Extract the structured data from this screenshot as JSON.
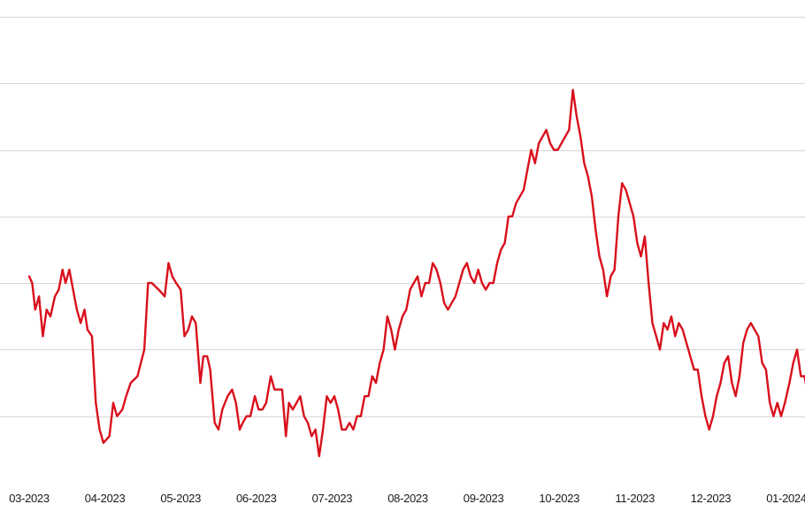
{
  "chart_data": {
    "type": "line",
    "title": "",
    "xlabel": "",
    "ylabel": "",
    "grid": true,
    "legend": "none",
    "line_color": "#d8101c",
    "grid_color": "#d6d6d6",
    "tick_labels": [
      "03-2023",
      "04-2023",
      "05-2023",
      "06-2023",
      "07-2023",
      "08-2023",
      "09-2023",
      "10-2023",
      "11-2023",
      "12-2023",
      "01-2024"
    ],
    "ylim": [
      0,
      7
    ],
    "gridlines": [
      1,
      2,
      3,
      4,
      5,
      6,
      7
    ],
    "series": [
      {
        "values": [
          [
            0.0,
            3.1
          ],
          [
            0.4,
            3.0
          ],
          [
            0.8,
            2.6
          ],
          [
            1.3,
            2.8
          ],
          [
            1.8,
            2.2
          ],
          [
            2.3,
            2.6
          ],
          [
            2.8,
            2.5
          ],
          [
            3.4,
            2.8
          ],
          [
            3.9,
            2.9
          ],
          [
            4.4,
            3.2
          ],
          [
            4.8,
            3.0
          ],
          [
            5.3,
            3.2
          ],
          [
            5.8,
            2.9
          ],
          [
            6.3,
            2.6
          ],
          [
            6.8,
            2.4
          ],
          [
            7.3,
            2.6
          ],
          [
            7.7,
            2.3
          ],
          [
            8.3,
            2.2
          ],
          [
            8.8,
            1.2
          ],
          [
            9.3,
            0.8
          ],
          [
            9.8,
            0.6
          ],
          [
            10.6,
            0.7
          ],
          [
            11.1,
            1.2
          ],
          [
            11.6,
            1.0
          ],
          [
            12.3,
            1.1
          ],
          [
            12.8,
            1.3
          ],
          [
            13.4,
            1.5
          ],
          [
            14.3,
            1.6
          ],
          [
            15.2,
            2.0
          ],
          [
            15.7,
            3.0
          ],
          [
            16.2,
            3.0
          ],
          [
            17.1,
            2.9
          ],
          [
            17.9,
            2.8
          ],
          [
            18.4,
            3.3
          ],
          [
            18.9,
            3.1
          ],
          [
            19.4,
            3.0
          ],
          [
            20.0,
            2.9
          ],
          [
            20.5,
            2.2
          ],
          [
            21.0,
            2.3
          ],
          [
            21.5,
            2.5
          ],
          [
            22.0,
            2.4
          ],
          [
            22.6,
            1.5
          ],
          [
            23.0,
            1.9
          ],
          [
            23.5,
            1.9
          ],
          [
            23.9,
            1.7
          ],
          [
            24.5,
            0.9
          ],
          [
            25.0,
            0.8
          ],
          [
            25.5,
            1.1
          ],
          [
            26.2,
            1.3
          ],
          [
            26.8,
            1.4
          ],
          [
            27.3,
            1.2
          ],
          [
            27.8,
            0.8
          ],
          [
            28.2,
            0.9
          ],
          [
            28.7,
            1.0
          ],
          [
            29.2,
            1.0
          ],
          [
            29.8,
            1.3
          ],
          [
            30.3,
            1.1
          ],
          [
            30.8,
            1.1
          ],
          [
            31.3,
            1.2
          ],
          [
            31.9,
            1.6
          ],
          [
            32.4,
            1.4
          ],
          [
            32.9,
            1.4
          ],
          [
            33.4,
            1.4
          ],
          [
            33.9,
            0.7
          ],
          [
            34.3,
            1.2
          ],
          [
            34.8,
            1.1
          ],
          [
            35.3,
            1.2
          ],
          [
            35.8,
            1.3
          ],
          [
            36.3,
            1.0
          ],
          [
            36.8,
            0.9
          ],
          [
            37.3,
            0.7
          ],
          [
            37.8,
            0.8
          ],
          [
            38.3,
            0.4
          ],
          [
            38.8,
            0.8
          ],
          [
            39.3,
            1.3
          ],
          [
            39.8,
            1.2
          ],
          [
            40.3,
            1.3
          ],
          [
            40.8,
            1.1
          ],
          [
            41.3,
            0.8
          ],
          [
            41.8,
            0.8
          ],
          [
            42.3,
            0.9
          ],
          [
            42.8,
            0.8
          ],
          [
            43.3,
            1.0
          ],
          [
            43.8,
            1.0
          ],
          [
            44.3,
            1.3
          ],
          [
            44.8,
            1.3
          ],
          [
            45.3,
            1.6
          ],
          [
            45.8,
            1.5
          ],
          [
            46.3,
            1.8
          ],
          [
            46.8,
            2.0
          ],
          [
            47.3,
            2.5
          ],
          [
            47.8,
            2.3
          ],
          [
            48.3,
            2.0
          ],
          [
            48.8,
            2.3
          ],
          [
            49.3,
            2.5
          ],
          [
            49.8,
            2.6
          ],
          [
            50.3,
            2.9
          ],
          [
            50.8,
            3.0
          ],
          [
            51.3,
            3.1
          ],
          [
            51.8,
            2.8
          ],
          [
            52.3,
            3.0
          ],
          [
            52.8,
            3.0
          ],
          [
            53.3,
            3.3
          ],
          [
            53.8,
            3.2
          ],
          [
            54.3,
            3.0
          ],
          [
            54.8,
            2.7
          ],
          [
            55.3,
            2.6
          ],
          [
            55.8,
            2.7
          ],
          [
            56.3,
            2.8
          ],
          [
            56.8,
            3.0
          ],
          [
            57.3,
            3.2
          ],
          [
            57.8,
            3.3
          ],
          [
            58.3,
            3.1
          ],
          [
            58.8,
            3.0
          ],
          [
            59.3,
            3.2
          ],
          [
            59.8,
            3.0
          ],
          [
            60.3,
            2.9
          ],
          [
            60.8,
            3.0
          ],
          [
            61.3,
            3.0
          ],
          [
            61.8,
            3.3
          ],
          [
            62.3,
            3.5
          ],
          [
            62.8,
            3.6
          ],
          [
            63.3,
            4.0
          ],
          [
            63.8,
            4.0
          ],
          [
            64.3,
            4.2
          ],
          [
            64.8,
            4.3
          ],
          [
            65.3,
            4.4
          ],
          [
            65.8,
            4.7
          ],
          [
            66.3,
            5.0
          ],
          [
            66.8,
            4.8
          ],
          [
            67.3,
            5.1
          ],
          [
            67.8,
            5.2
          ],
          [
            68.3,
            5.3
          ],
          [
            68.8,
            5.1
          ],
          [
            69.3,
            5.0
          ],
          [
            69.8,
            5.0
          ],
          [
            70.3,
            5.1
          ],
          [
            70.8,
            5.2
          ],
          [
            71.3,
            5.3
          ],
          [
            71.8,
            5.9
          ],
          [
            72.3,
            5.5
          ],
          [
            72.8,
            5.2
          ],
          [
            73.3,
            4.8
          ],
          [
            73.8,
            4.6
          ],
          [
            74.3,
            4.3
          ],
          [
            74.8,
            3.8
          ],
          [
            75.3,
            3.4
          ],
          [
            75.8,
            3.2
          ],
          [
            76.3,
            2.8
          ],
          [
            76.8,
            3.1
          ],
          [
            77.3,
            3.2
          ],
          [
            77.8,
            4.0
          ],
          [
            78.3,
            4.5
          ],
          [
            78.8,
            4.4
          ],
          [
            79.3,
            4.2
          ],
          [
            79.8,
            4.0
          ],
          [
            80.3,
            3.6
          ],
          [
            80.8,
            3.4
          ],
          [
            81.3,
            3.7
          ],
          [
            81.8,
            3.0
          ],
          [
            82.3,
            2.4
          ],
          [
            82.8,
            2.2
          ],
          [
            83.3,
            2.0
          ],
          [
            83.8,
            2.4
          ],
          [
            84.3,
            2.3
          ],
          [
            84.8,
            2.5
          ],
          [
            85.3,
            2.2
          ],
          [
            85.8,
            2.4
          ],
          [
            86.3,
            2.3
          ],
          [
            86.8,
            2.1
          ],
          [
            87.3,
            1.9
          ],
          [
            87.8,
            1.7
          ],
          [
            88.3,
            1.7
          ],
          [
            88.8,
            1.3
          ],
          [
            89.3,
            1.0
          ],
          [
            89.8,
            0.8
          ],
          [
            90.3,
            1.0
          ],
          [
            90.8,
            1.3
          ],
          [
            91.3,
            1.5
          ],
          [
            91.8,
            1.8
          ],
          [
            92.3,
            1.9
          ],
          [
            92.8,
            1.5
          ],
          [
            93.3,
            1.3
          ],
          [
            93.8,
            1.6
          ],
          [
            94.3,
            2.1
          ],
          [
            94.8,
            2.3
          ],
          [
            95.3,
            2.4
          ],
          [
            95.8,
            2.3
          ],
          [
            96.3,
            2.2
          ],
          [
            96.8,
            1.8
          ],
          [
            97.3,
            1.7
          ],
          [
            97.8,
            1.2
          ],
          [
            98.3,
            1.0
          ],
          [
            98.8,
            1.2
          ],
          [
            99.3,
            1.0
          ],
          [
            99.8,
            1.2
          ],
          [
            100.4,
            1.5
          ],
          [
            100.9,
            1.8
          ],
          [
            101.4,
            2.0
          ],
          [
            101.9,
            1.6
          ],
          [
            102.4,
            1.6
          ],
          [
            103.0,
            1.2
          ],
          [
            103.5,
            1.0
          ],
          [
            103.9,
            1.0
          ],
          [
            104.4,
            1.2
          ],
          [
            104.8,
            1.3
          ]
        ]
      }
    ]
  }
}
